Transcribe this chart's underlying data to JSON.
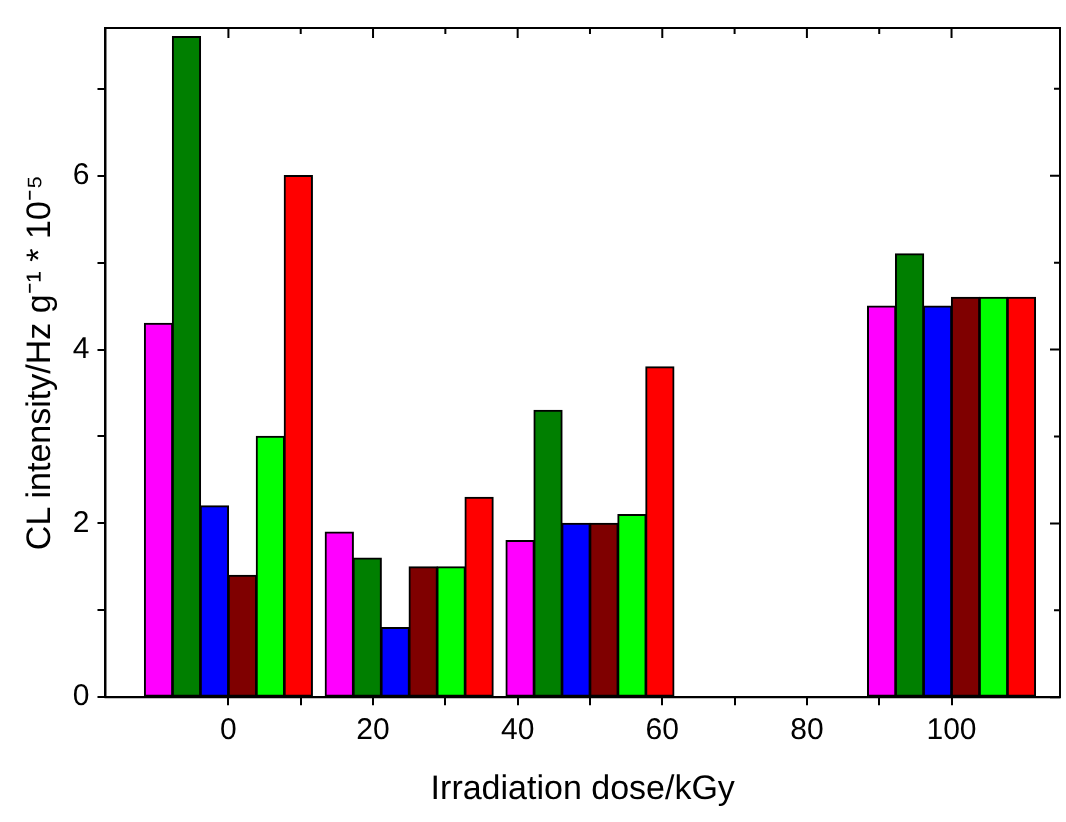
{
  "chart_data": {
    "type": "bar",
    "xlabel": "Irradiation dose/kGy",
    "ylabel": "CL intensity/Hz g⁻¹ * 10⁻⁵",
    "x": [
      0,
      25,
      50,
      100
    ],
    "series": [
      {
        "color": "#ff00ff",
        "values": [
          4.3,
          1.9,
          1.8,
          4.5
        ]
      },
      {
        "color": "#007f00",
        "values": [
          7.6,
          1.6,
          3.3,
          5.1
        ]
      },
      {
        "color": "#0000ff",
        "values": [
          2.2,
          0.8,
          2.0,
          4.5
        ]
      },
      {
        "color": "#7f0000",
        "values": [
          1.4,
          1.5,
          2.0,
          4.6
        ]
      },
      {
        "color": "#00ff00",
        "values": [
          3.0,
          1.5,
          2.1,
          4.6
        ]
      },
      {
        "color": "#ff0000",
        "values": [
          6.0,
          2.3,
          3.8,
          4.6
        ]
      }
    ],
    "xlim": [
      -17,
      115
    ],
    "xticks": [
      0,
      {
        "value": 10,
        "label": null
      },
      20,
      {
        "value": 30,
        "label": null
      },
      40,
      {
        "value": 50,
        "label": null
      },
      60,
      {
        "value": 70,
        "label": null
      },
      80,
      {
        "value": 90,
        "label": null
      },
      100
    ],
    "ylim": [
      0,
      7.7
    ],
    "yticks": [
      0,
      {
        "value": 1,
        "label": null
      },
      2,
      {
        "value": 3,
        "label": null
      },
      4,
      {
        "value": 5,
        "label": null
      },
      6,
      {
        "value": 7,
        "label": null
      }
    ],
    "grid": false,
    "legend": false
  }
}
